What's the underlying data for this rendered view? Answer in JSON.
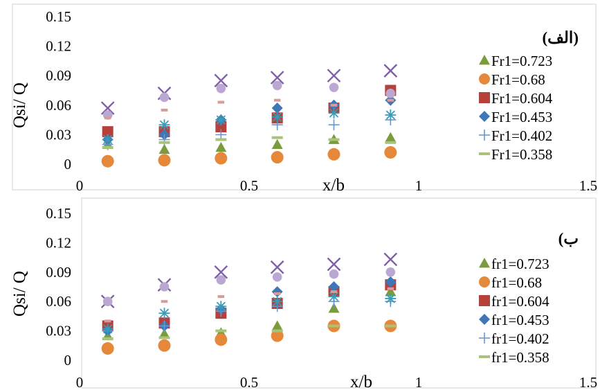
{
  "chart_data": [
    {
      "type": "scatter",
      "panel_label": "(الف)",
      "xlabel": "x/b",
      "ylabel": "Qsi/ Q",
      "xlim": [
        0,
        1.5
      ],
      "ylim": [
        0,
        0.15
      ],
      "x_ticks": [
        "0",
        "0.5",
        "1",
        "1.5"
      ],
      "y_ticks": [
        "0",
        "0.03",
        "0.06",
        "0.09",
        "0.12",
        "0.15"
      ],
      "grid": false,
      "legend_position": "right",
      "series": [
        {
          "name": "Fr1=0.723",
          "marker": "triangle",
          "color": "#7a9c3c",
          "x": [
            0.083,
            0.25,
            0.417,
            0.583,
            0.75,
            0.917
          ],
          "y": [
            0.02,
            0.015,
            0.017,
            0.02,
            0.025,
            0.027
          ]
        },
        {
          "name": "Fr1=0.68",
          "marker": "circle",
          "color": "#e6883a",
          "x": [
            0.083,
            0.25,
            0.417,
            0.583,
            0.75,
            0.917
          ],
          "y": [
            0.003,
            0.004,
            0.006,
            0.007,
            0.01,
            0.012
          ]
        },
        {
          "name": "Fr1=0.604",
          "marker": "square",
          "color": "#b5403c",
          "x": [
            0.083,
            0.25,
            0.417,
            0.583,
            0.75,
            0.917
          ],
          "y": [
            0.033,
            0.033,
            0.038,
            0.047,
            0.057,
            0.075
          ]
        },
        {
          "name": "Fr1=0.453",
          "marker": "diamond",
          "color": "#3e77b5",
          "x": [
            0.083,
            0.25,
            0.417,
            0.583,
            0.75,
            0.917
          ],
          "y": [
            0.025,
            0.03,
            0.045,
            0.057,
            0.06,
            0.065
          ]
        },
        {
          "name": "Fr1=0.402",
          "marker": "plus",
          "color": "#6a97cf",
          "x": [
            0.083,
            0.25,
            0.417,
            0.583,
            0.75,
            0.917
          ],
          "y": [
            0.02,
            0.025,
            0.03,
            0.04,
            0.04,
            0.045
          ]
        },
        {
          "name": "Fr1=0.358",
          "marker": "dash",
          "color": "#a9c27c",
          "x": [
            0.083,
            0.25,
            0.417,
            0.583,
            0.75,
            0.917
          ],
          "y": [
            0.017,
            0.022,
            0.025,
            0.027,
            0.025,
            0.022
          ]
        },
        {
          "name": "",
          "marker": "x",
          "color": "#7f5fa7",
          "x": [
            0.083,
            0.25,
            0.417,
            0.583,
            0.75,
            0.917
          ],
          "y": [
            0.057,
            0.072,
            0.085,
            0.088,
            0.09,
            0.095
          ]
        },
        {
          "name": "",
          "marker": "star",
          "color": "#3a9bb8",
          "x": [
            0.083,
            0.25,
            0.417,
            0.583,
            0.75,
            0.917
          ],
          "y": [
            0.025,
            0.04,
            0.045,
            0.048,
            0.052,
            0.05
          ]
        },
        {
          "name": "",
          "marker": "circle-light",
          "color": "#bba8d2",
          "x": [
            0.083,
            0.25,
            0.417,
            0.583,
            0.75,
            0.917
          ],
          "y": [
            0.05,
            0.068,
            0.077,
            0.08,
            0.078,
            0.072
          ]
        },
        {
          "name": "",
          "marker": "dash-pink",
          "color": "#d99a9a",
          "x": [
            0.083,
            0.25,
            0.417,
            0.583,
            0.75,
            0.917
          ],
          "y": [
            0.047,
            0.055,
            0.063,
            0.065,
            0.06,
            0.065
          ]
        }
      ]
    },
    {
      "type": "scatter",
      "panel_label": "(ب",
      "xlabel": "x/b",
      "ylabel": "Qsi/ Q",
      "xlim": [
        0,
        1.5
      ],
      "ylim": [
        0,
        0.15
      ],
      "x_ticks": [
        "0",
        "0.5",
        "1",
        "1.5"
      ],
      "y_ticks": [
        "0",
        "0.03",
        "0.06",
        "0.09",
        "0.12",
        "0.15"
      ],
      "grid": false,
      "legend_position": "right",
      "series": [
        {
          "name": "fr1=0.723",
          "marker": "triangle",
          "color": "#7a9c3c",
          "x": [
            0.083,
            0.25,
            0.417,
            0.583,
            0.75,
            0.917
          ],
          "y": [
            0.025,
            0.027,
            0.028,
            0.035,
            0.053,
            0.07
          ]
        },
        {
          "name": "fr1=0.68",
          "marker": "circle",
          "color": "#e6883a",
          "x": [
            0.083,
            0.25,
            0.417,
            0.583,
            0.75,
            0.917
          ],
          "y": [
            0.012,
            0.015,
            0.021,
            0.025,
            0.035,
            0.035
          ]
        },
        {
          "name": "fr1=0.604",
          "marker": "square",
          "color": "#b5403c",
          "x": [
            0.083,
            0.25,
            0.417,
            0.583,
            0.75,
            0.917
          ],
          "y": [
            0.035,
            0.038,
            0.048,
            0.058,
            0.07,
            0.077
          ]
        },
        {
          "name": "fr1=0.453",
          "marker": "diamond",
          "color": "#3e77b5",
          "x": [
            0.083,
            0.25,
            0.417,
            0.583,
            0.75,
            0.917
          ],
          "y": [
            0.03,
            0.035,
            0.052,
            0.07,
            0.075,
            0.08
          ]
        },
        {
          "name": "fr1=0.402",
          "marker": "plus",
          "color": "#6a97cf",
          "x": [
            0.083,
            0.25,
            0.417,
            0.583,
            0.75,
            0.917
          ],
          "y": [
            0.03,
            0.035,
            0.05,
            0.055,
            0.06,
            0.06
          ]
        },
        {
          "name": "fr1=0.358",
          "marker": "dash",
          "color": "#a9c27c",
          "x": [
            0.083,
            0.25,
            0.417,
            0.583,
            0.75,
            0.917
          ],
          "y": [
            0.022,
            0.023,
            0.03,
            0.03,
            0.035,
            0.035
          ]
        },
        {
          "name": "",
          "marker": "x",
          "color": "#7f5fa7",
          "x": [
            0.083,
            0.25,
            0.417,
            0.583,
            0.75,
            0.917
          ],
          "y": [
            0.06,
            0.077,
            0.09,
            0.095,
            0.098,
            0.103
          ]
        },
        {
          "name": "",
          "marker": "star",
          "color": "#3a9bb8",
          "x": [
            0.083,
            0.25,
            0.417,
            0.583,
            0.75,
            0.917
          ],
          "y": [
            0.032,
            0.048,
            0.055,
            0.06,
            0.065,
            0.063
          ]
        },
        {
          "name": "",
          "marker": "circle-light",
          "color": "#bba8d2",
          "x": [
            0.083,
            0.25,
            0.417,
            0.583,
            0.75,
            0.917
          ],
          "y": [
            0.06,
            0.075,
            0.082,
            0.085,
            0.088,
            0.09
          ]
        },
        {
          "name": "",
          "marker": "dash-pink",
          "color": "#d99a9a",
          "x": [
            0.083,
            0.25,
            0.417,
            0.583,
            0.75,
            0.917
          ],
          "y": [
            0.04,
            0.06,
            0.065,
            0.068,
            0.07,
            0.073
          ]
        }
      ]
    }
  ]
}
